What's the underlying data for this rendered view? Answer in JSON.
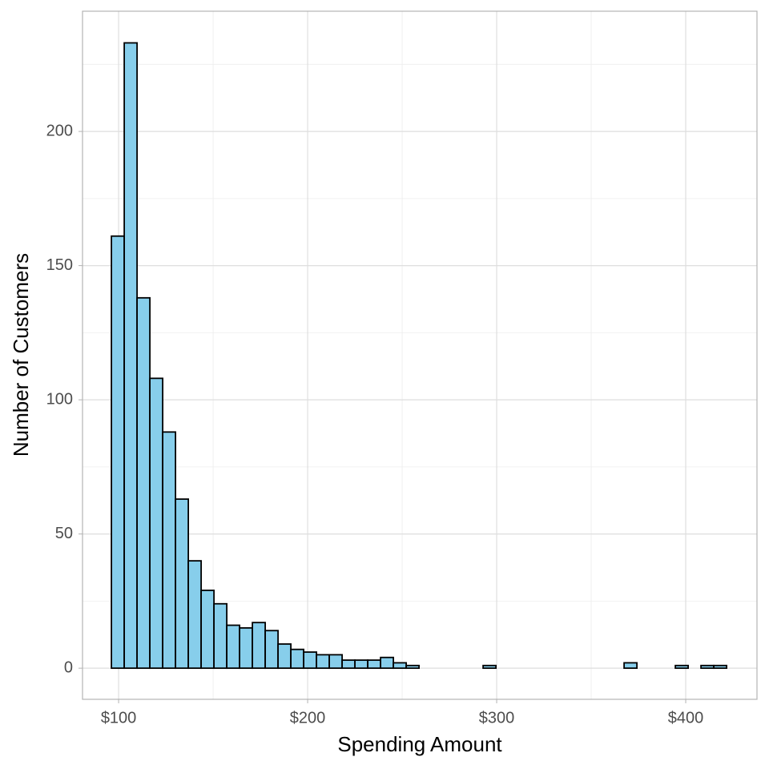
{
  "chart_data": {
    "type": "histogram",
    "x_label": "Spending Amount",
    "y_label": "Number of Customers",
    "bins": [
      96.2,
      102.98,
      109.76,
      116.54,
      123.32,
      130.1,
      136.88,
      143.66,
      150.44,
      157.22,
      164,
      170.78,
      177.56,
      184.34,
      191.12,
      197.9,
      204.68,
      211.46,
      218.24,
      225.02,
      231.8,
      238.58,
      245.36,
      252.14,
      258.92,
      265.7,
      272.48,
      279.26,
      286.04,
      292.82,
      299.6,
      306.38,
      313.16,
      319.94,
      326.72,
      333.5,
      340.28,
      347.06,
      353.84,
      360.62,
      367.4,
      374.18,
      380.96,
      387.74,
      394.52,
      401.3,
      408.08,
      414.86,
      421.64
    ],
    "values": [
      161,
      233,
      138,
      108,
      88,
      63,
      40,
      29,
      24,
      16,
      15,
      17,
      14,
      9,
      7,
      6,
      5,
      5,
      3,
      3,
      3,
      4,
      2,
      1,
      0,
      0,
      0,
      0,
      0,
      1,
      0,
      0,
      0,
      0,
      0,
      0,
      0,
      0,
      0,
      0,
      2,
      0,
      0,
      0,
      1,
      0,
      1,
      1
    ],
    "color": "#87ceeb",
    "edge_color": "#000000",
    "xlim": [
      80.9,
      437.7
    ],
    "ylim": [
      -11.6,
      244.8
    ],
    "xticks": [
      {
        "value": 100,
        "label": "$100"
      },
      {
        "value": 200,
        "label": "$200"
      },
      {
        "value": 300,
        "label": "$300"
      },
      {
        "value": 400,
        "label": "$400"
      }
    ],
    "yticks": [
      0,
      50,
      100,
      150,
      200
    ],
    "x_minor_grid": [
      150,
      250,
      350
    ],
    "y_minor_grid": [
      25,
      75,
      125,
      175,
      225
    ],
    "grid": true
  }
}
